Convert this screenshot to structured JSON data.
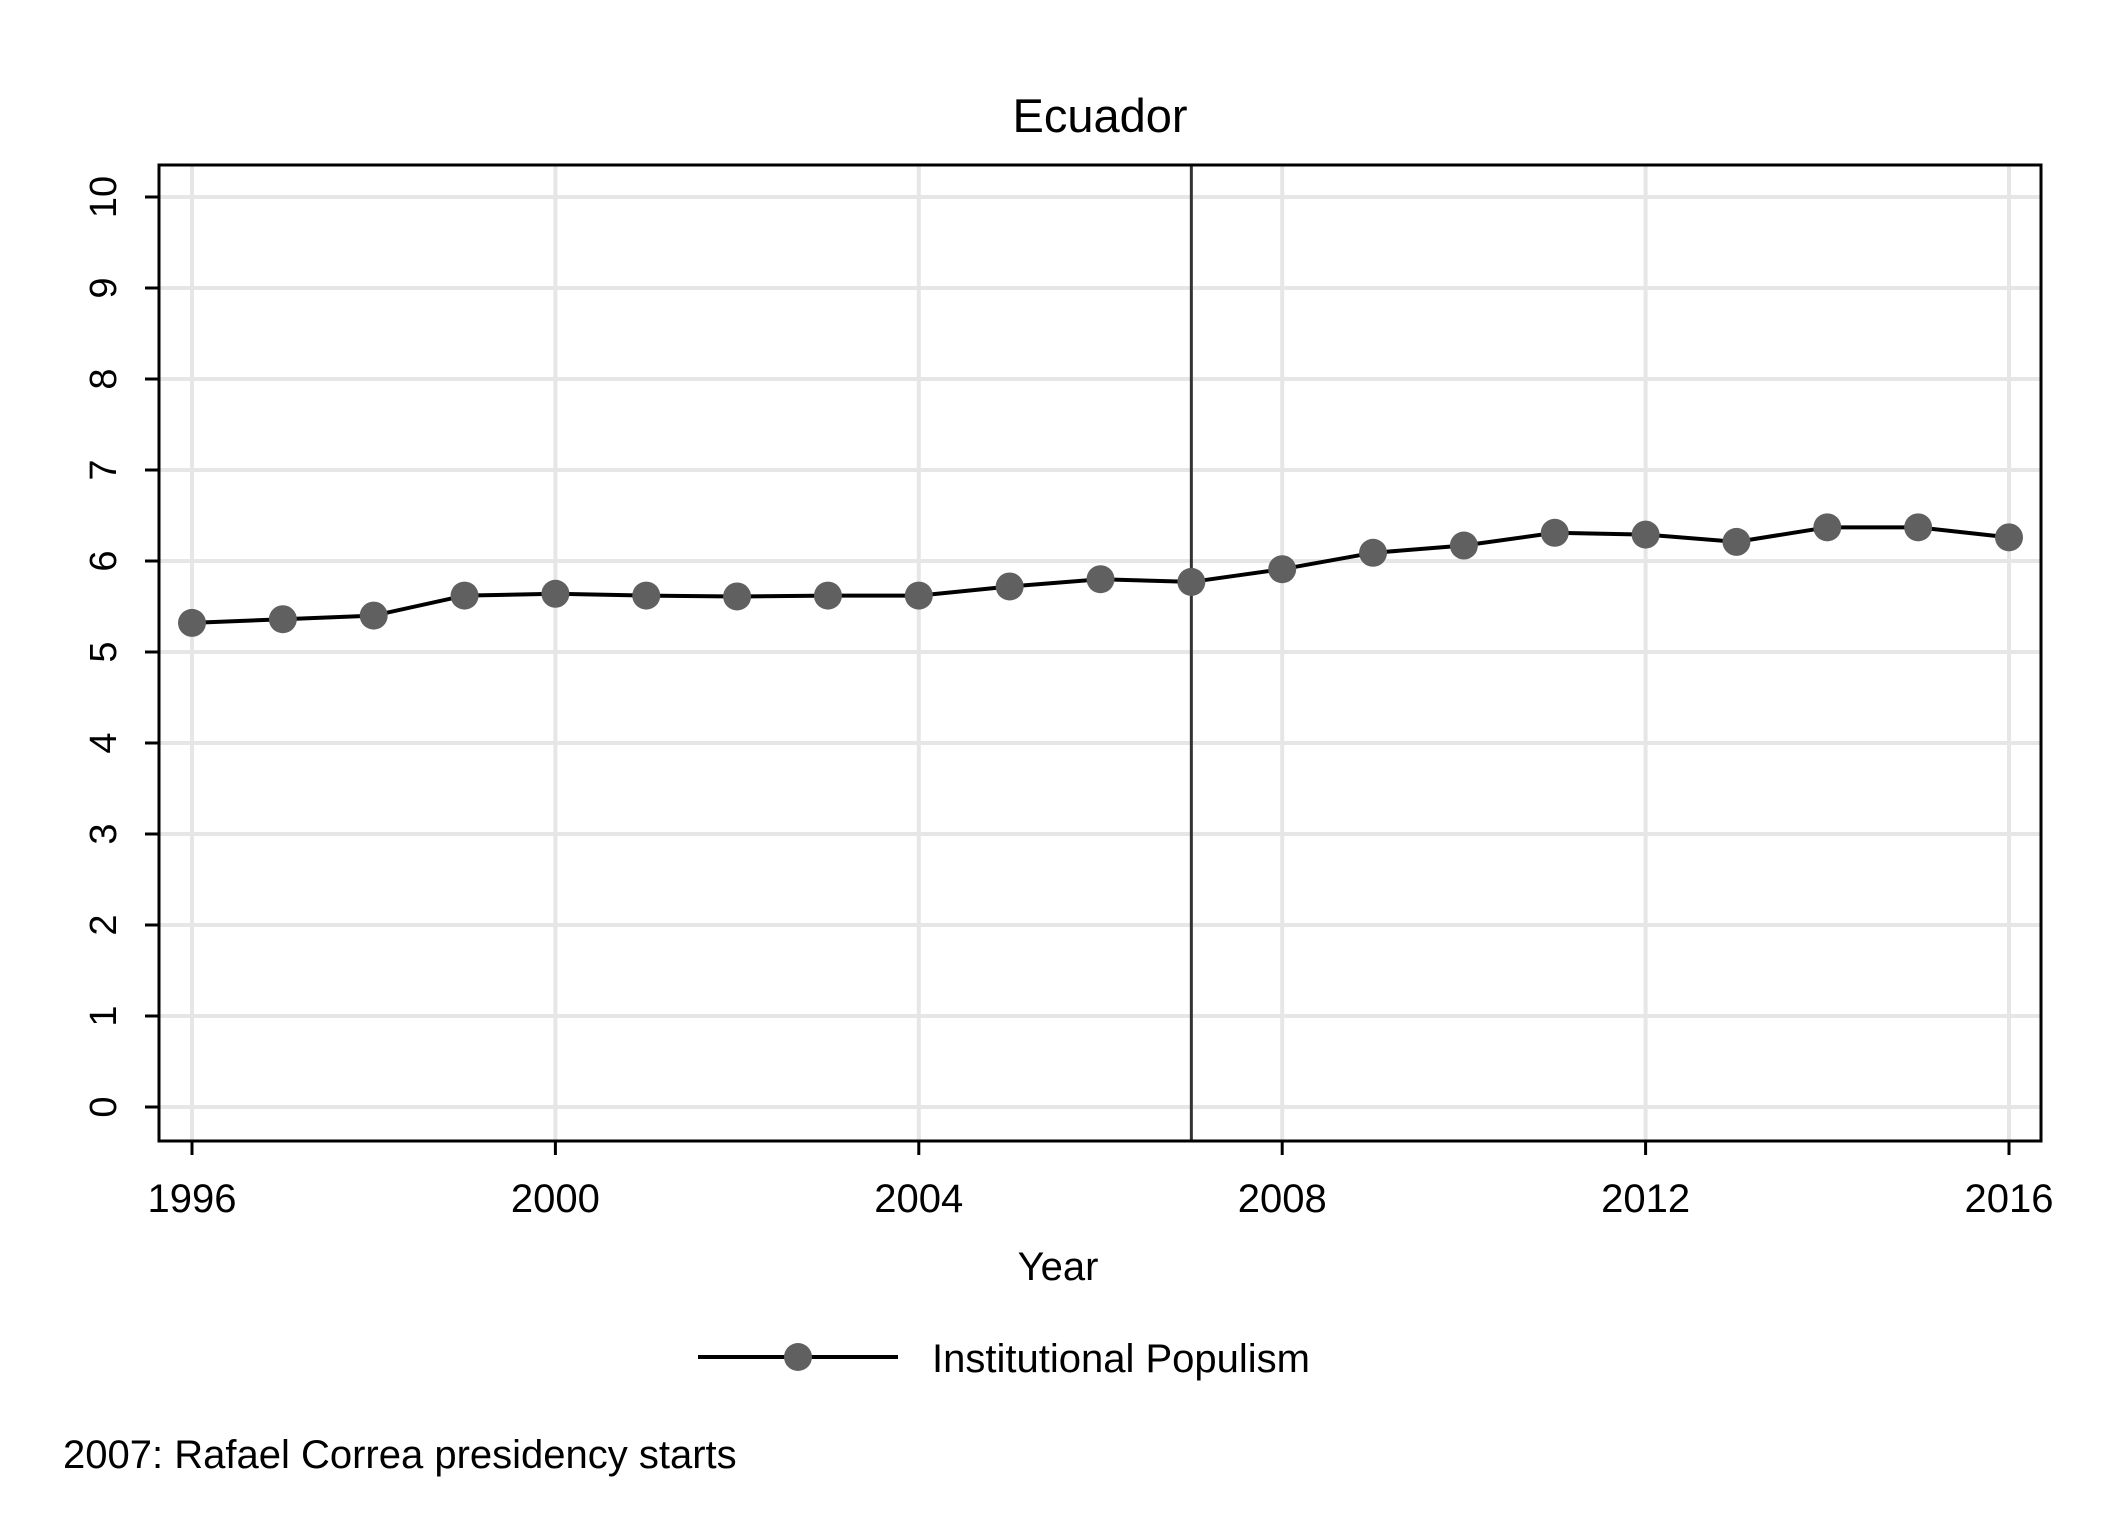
{
  "chart_data": {
    "type": "line",
    "title": "Ecuador",
    "xlabel": "Year",
    "ylabel": "",
    "xlim": [
      1996,
      2016
    ],
    "ylim": [
      0,
      10
    ],
    "x_ticks": [
      1996,
      2000,
      2004,
      2008,
      2012,
      2016
    ],
    "y_ticks": [
      0,
      1,
      2,
      3,
      4,
      5,
      6,
      7,
      8,
      9,
      10
    ],
    "grid": true,
    "x": [
      1996,
      1997,
      1998,
      1999,
      2000,
      2001,
      2002,
      2003,
      2004,
      2005,
      2006,
      2007,
      2008,
      2009,
      2010,
      2011,
      2012,
      2013,
      2014,
      2015,
      2016
    ],
    "series": [
      {
        "name": "Institutional Populism",
        "color": "#000000",
        "marker_color": "#606060",
        "values": [
          5.32,
          5.36,
          5.4,
          5.62,
          5.64,
          5.62,
          5.61,
          5.62,
          5.62,
          5.72,
          5.8,
          5.77,
          5.91,
          6.09,
          6.17,
          6.31,
          6.29,
          6.21,
          6.37,
          6.37,
          6.26
        ]
      }
    ],
    "vline": {
      "x": 2007,
      "color": "#333333"
    },
    "legend": {
      "position": "bottom",
      "label": "Institutional Populism"
    },
    "note": "2007: Rafael Correa presidency starts"
  }
}
